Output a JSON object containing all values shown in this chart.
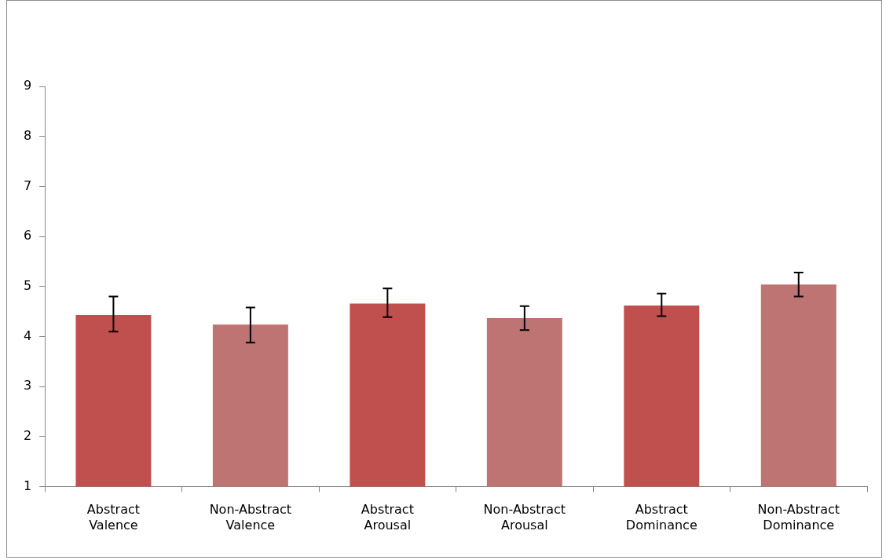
{
  "chart_data": {
    "type": "bar",
    "categories": [
      "Abstract Valence",
      "Non-Abstract Valence",
      "Abstract Arousal",
      "Non-Abstract Arousal",
      "Abstract Dominance",
      "Non-Abstract Dominance"
    ],
    "values": [
      4.43,
      4.24,
      4.66,
      4.37,
      4.62,
      5.04
    ],
    "colors": [
      "#c0504d",
      "#be7472",
      "#c0504d",
      "#be7472",
      "#c0504d",
      "#be7472"
    ],
    "errors": [
      [
        4.1,
        4.8
      ],
      [
        3.88,
        4.58
      ],
      [
        4.39,
        4.96
      ],
      [
        4.13,
        4.61
      ],
      [
        4.41,
        4.86
      ],
      [
        4.8,
        5.28
      ]
    ],
    "ylim": [
      1,
      9
    ],
    "yticks": [
      1,
      2,
      3,
      4,
      5,
      6,
      7,
      8,
      9
    ],
    "grid": false,
    "legend": false
  }
}
